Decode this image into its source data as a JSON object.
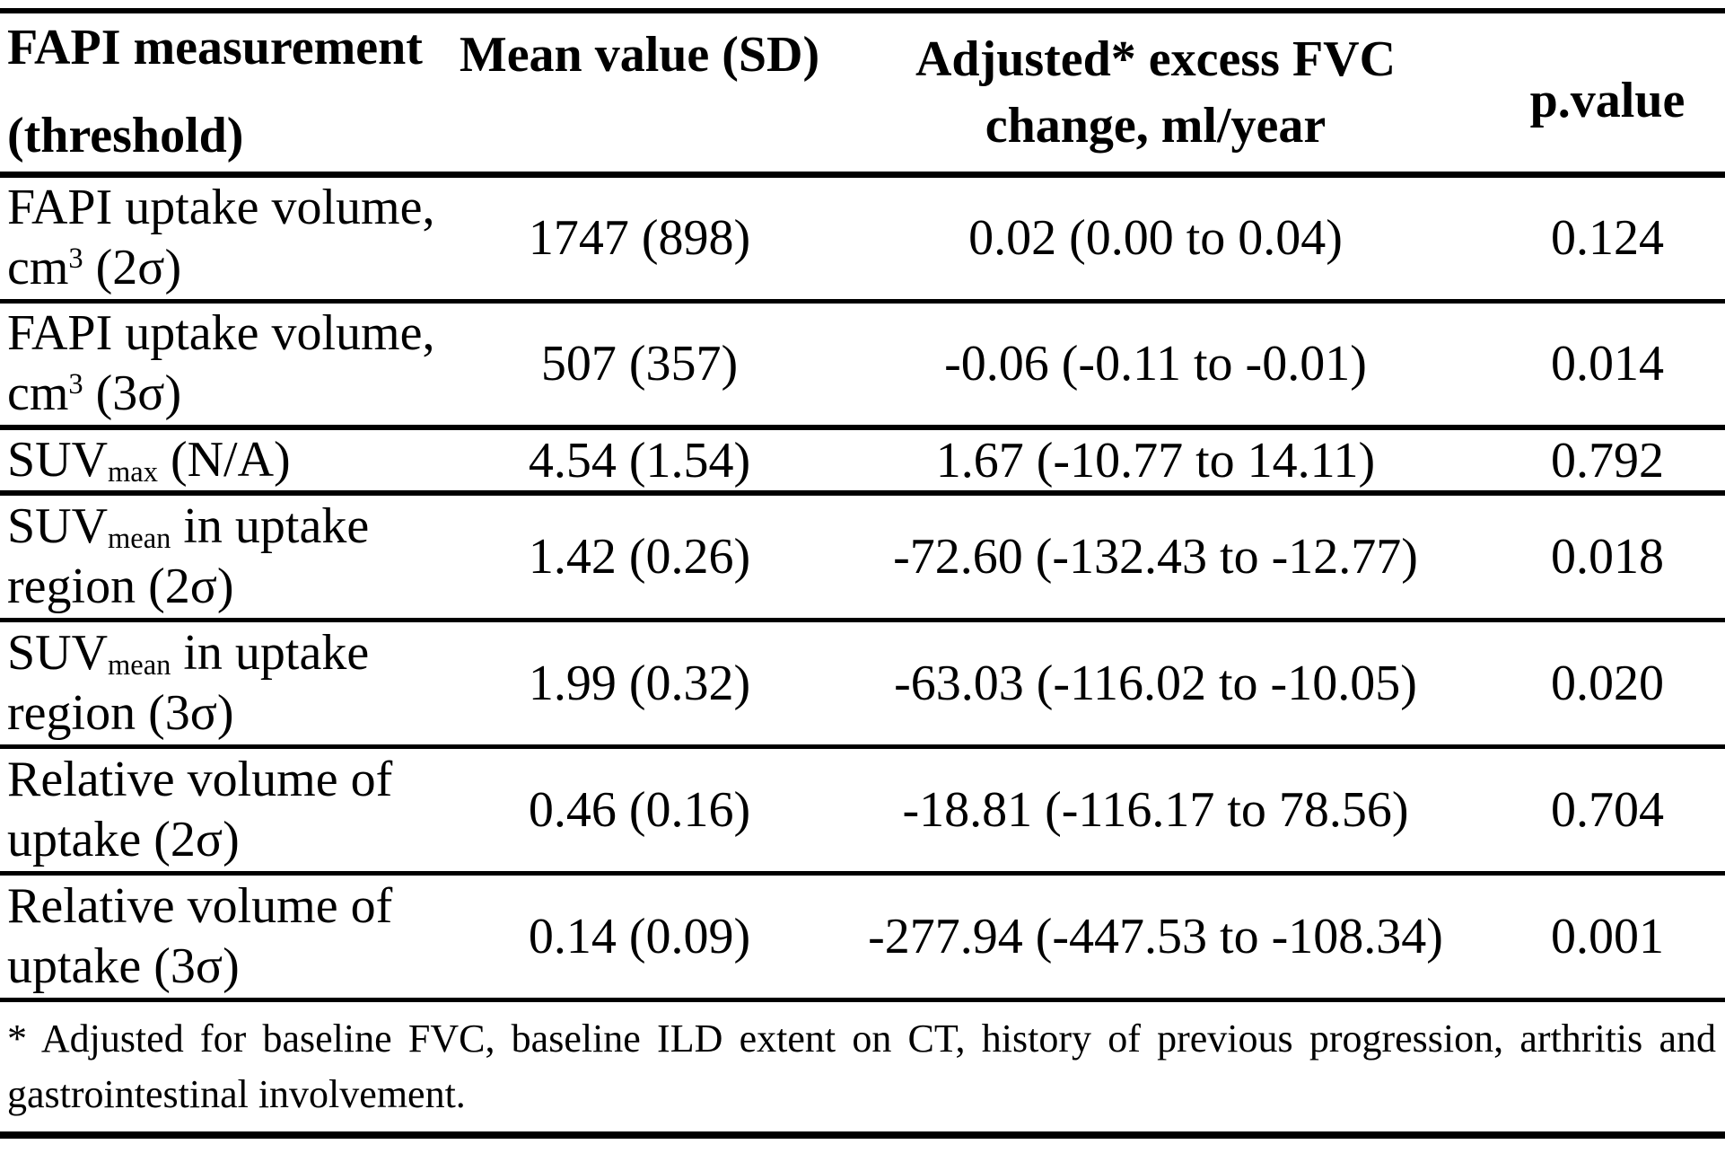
{
  "table": {
    "header": {
      "col1_line1": "FAPI measurement",
      "col1_line2": "(threshold)",
      "col2": "Mean value (SD)",
      "col3_line1": "Adjusted* excess FVC",
      "col3_line2": "change, ml/year",
      "col4": "p.value"
    },
    "rows": [
      {
        "label": [
          {
            "t": "FAPI uptake volume,"
          },
          {
            "br": true
          },
          {
            "t": "cm"
          },
          {
            "t": "3",
            "sup": true
          },
          {
            "t": " (2σ)"
          }
        ],
        "mean": "1747 (898)",
        "fvc": "0.02 (0.00 to 0.04)",
        "p": "0.124"
      },
      {
        "label": [
          {
            "t": "FAPI uptake volume,"
          },
          {
            "br": true
          },
          {
            "t": "cm"
          },
          {
            "t": "3",
            "sup": true
          },
          {
            "t": " (3σ)"
          }
        ],
        "mean": "507 (357)",
        "fvc": "-0.06 (-0.11 to -0.01)",
        "p": "0.014"
      },
      {
        "label": [
          {
            "t": "SUV"
          },
          {
            "t": "max",
            "sub": true
          },
          {
            "t": " (N/A)"
          }
        ],
        "mean": "4.54 (1.54)",
        "fvc": "1.67 (-10.77 to 14.11)",
        "p": "0.792",
        "compact": true
      },
      {
        "label": [
          {
            "t": "SUV"
          },
          {
            "t": "mean",
            "sub": true
          },
          {
            "t": " in uptake"
          },
          {
            "br": true
          },
          {
            "t": "region (2σ)"
          }
        ],
        "mean": "1.42 (0.26)",
        "fvc": "-72.60 (-132.43 to -12.77)",
        "p": "0.018"
      },
      {
        "label": [
          {
            "t": "SUV"
          },
          {
            "t": "mean",
            "sub": true
          },
          {
            "t": " in uptake"
          },
          {
            "br": true
          },
          {
            "t": "region (3σ)"
          }
        ],
        "mean": "1.99 (0.32)",
        "fvc": "-63.03 (-116.02 to -10.05)",
        "p": "0.020"
      },
      {
        "label": [
          {
            "t": "Relative volume of"
          },
          {
            "br": true
          },
          {
            "t": "uptake (2σ)"
          }
        ],
        "mean": "0.46 (0.16)",
        "fvc": "-18.81 (-116.17 to 78.56)",
        "p": "0.704"
      },
      {
        "label": [
          {
            "t": "Relative volume of"
          },
          {
            "br": true
          },
          {
            "t": "uptake (3σ)"
          }
        ],
        "mean": "0.14 (0.09)",
        "fvc": "-277.94 (-447.53 to -108.34)",
        "p": "0.001"
      }
    ],
    "footnote": {
      "marker": "*",
      "line1": "Adjusted for baseline FVC, baseline ILD extent on CT, history of previous progression, arthritis and",
      "line2": "gastrointestinal involvement."
    },
    "colors": {
      "text": "#000000",
      "background": "#ffffff",
      "border": "#000000"
    }
  }
}
